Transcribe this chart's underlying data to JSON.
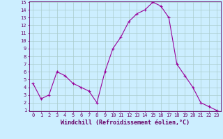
{
  "x": [
    0,
    1,
    2,
    3,
    4,
    5,
    6,
    7,
    8,
    9,
    10,
    11,
    12,
    13,
    14,
    15,
    16,
    17,
    18,
    19,
    20,
    21,
    22,
    23
  ],
  "y": [
    4.5,
    2.5,
    3.0,
    6.0,
    5.5,
    4.5,
    4.0,
    3.5,
    2.0,
    6.0,
    9.0,
    10.5,
    12.5,
    13.5,
    14.0,
    15.0,
    14.5,
    13.0,
    7.0,
    5.5,
    4.0,
    2.0,
    1.5,
    1.0
  ],
  "xlabel": "Windchill (Refroidissement éolien,°C)",
  "line_color": "#990099",
  "marker_color": "#990099",
  "bg_color": "#cceeff",
  "grid_color": "#aacccc",
  "axis_label_color": "#660066",
  "ylim": [
    1,
    15
  ],
  "xlim": [
    -0.5,
    23.5
  ],
  "yticks": [
    1,
    2,
    3,
    4,
    5,
    6,
    7,
    8,
    9,
    10,
    11,
    12,
    13,
    14,
    15
  ],
  "xticks": [
    0,
    1,
    2,
    3,
    4,
    5,
    6,
    7,
    8,
    9,
    10,
    11,
    12,
    13,
    14,
    15,
    16,
    17,
    18,
    19,
    20,
    21,
    22,
    23
  ],
  "tick_fontsize": 5,
  "xlabel_fontsize": 6
}
